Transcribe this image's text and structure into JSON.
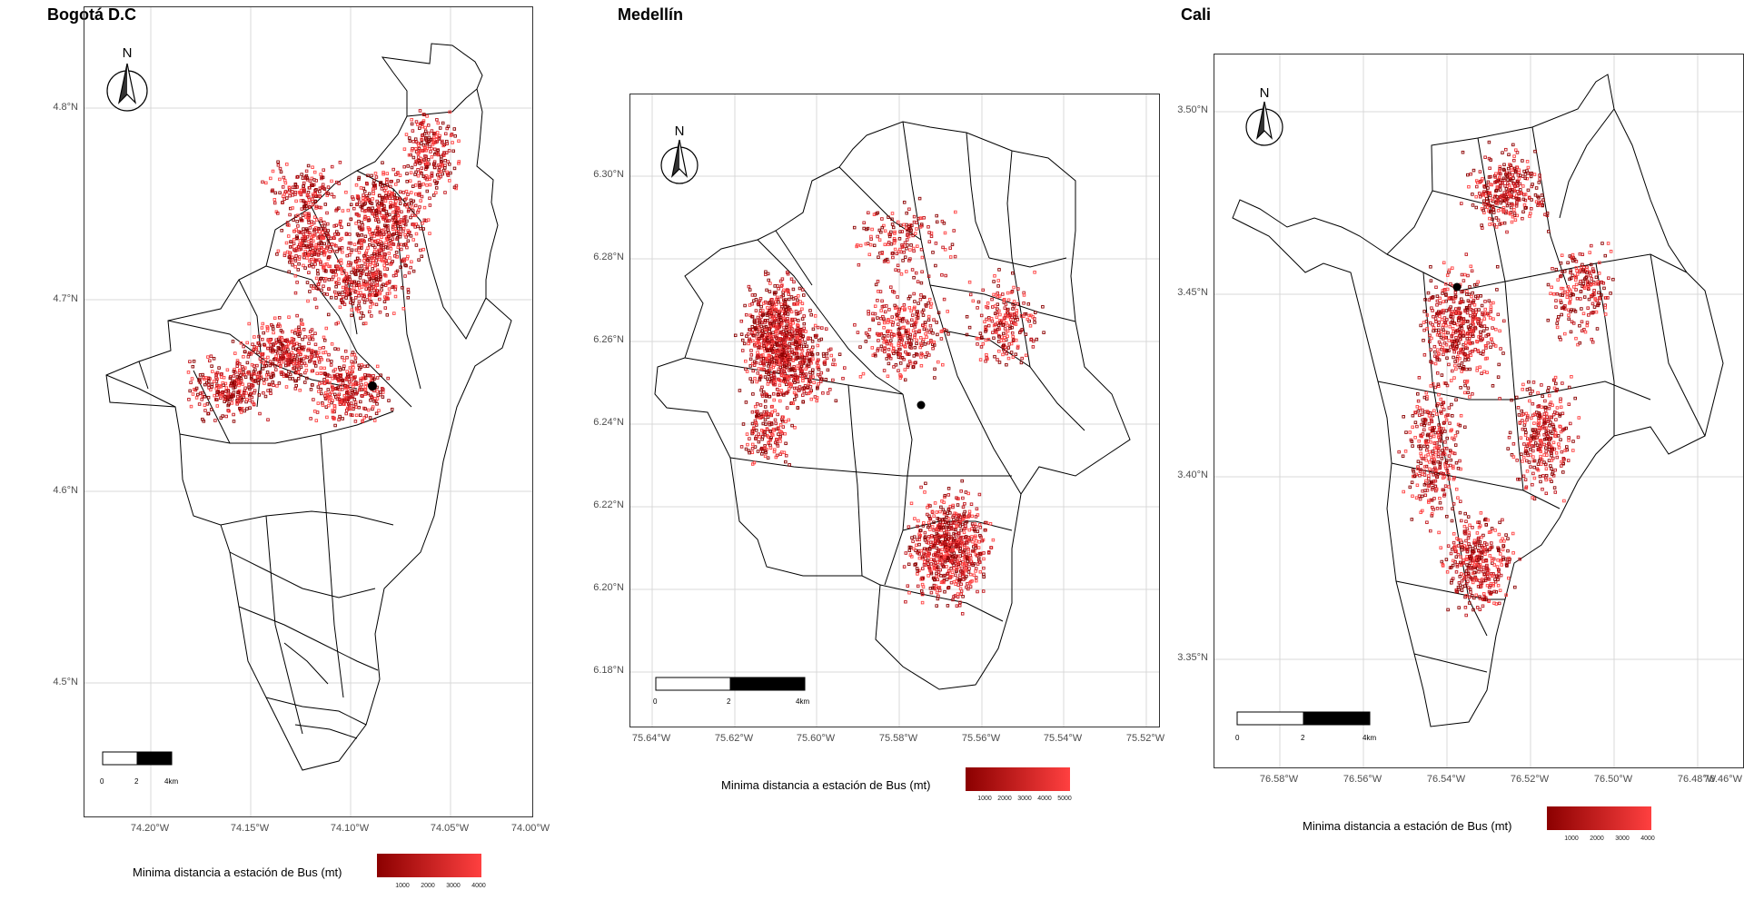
{
  "maps": [
    {
      "id": "bogota",
      "title": "Bogotá D.C",
      "north_label": "N",
      "y_ticks": [
        "4.8°N",
        "4.7°N",
        "4.6°N",
        "4.5°N"
      ],
      "x_ticks": [
        "74.20°W",
        "74.15°W",
        "74.10°W",
        "74.05°W",
        "74.00°W"
      ],
      "scale_labels": [
        "0",
        "2",
        "4km"
      ],
      "legend": {
        "title": "Minima distancia a estación de Bus (mt)",
        "ticks": [
          "1000",
          "2000",
          "3000",
          "4000"
        ]
      }
    },
    {
      "id": "medellin",
      "title": "Medellín",
      "north_label": "N",
      "y_ticks": [
        "6.30°N",
        "6.28°N",
        "6.26°N",
        "6.24°N",
        "6.22°N",
        "6.20°N",
        "6.18°N"
      ],
      "x_ticks": [
        "75.64°W",
        "75.62°W",
        "75.60°W",
        "75.58°W",
        "75.56°W",
        "75.54°W",
        "75.52°W"
      ],
      "scale_labels": [
        "0",
        "2",
        "4km"
      ],
      "legend": {
        "title": "Minima distancia a estación de Bus (mt)",
        "ticks": [
          "1000",
          "2000",
          "3000",
          "4000",
          "5000"
        ]
      }
    },
    {
      "id": "cali",
      "title": "Cali",
      "north_label": "N",
      "y_ticks": [
        "3.50°N",
        "3.45°N",
        "3.40°N",
        "3.35°N"
      ],
      "x_ticks": [
        "76.58°W",
        "76.56°W",
        "76.54°W",
        "76.52°W",
        "76.50°W",
        "76.48°W",
        "76.46°W"
      ],
      "scale_labels": [
        "0",
        "2",
        "4km"
      ],
      "legend": {
        "title": "Minima distancia a estación de Bus (mt)",
        "ticks": [
          "1000",
          "2000",
          "3000",
          "4000"
        ]
      }
    }
  ],
  "colors": {
    "point_dark": "#8b0000",
    "point_mid": "#c0151b",
    "point_light": "#ff4040",
    "outline": "#000000",
    "grid": "#d9d9d9",
    "station": "#000000"
  }
}
